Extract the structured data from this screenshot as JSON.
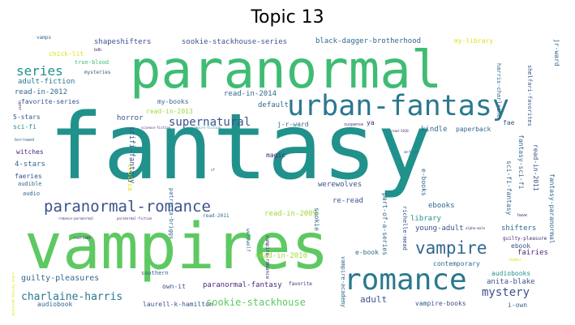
{
  "title": "Topic 13",
  "colors": {
    "teal_dark": "#2a788e",
    "teal": "#21918c",
    "green": "#5ec962",
    "green_mid": "#3fbc73",
    "blue": "#31688e",
    "navy": "#3b528b",
    "purple": "#482878",
    "dark": "#440154",
    "yellow": "#dde318",
    "lime": "#a0da39"
  },
  "words": [
    {
      "text": "fantasy"
    },
    {
      "text": "paranormal"
    },
    {
      "text": "vampires"
    },
    {
      "text": "urban-fantasy"
    },
    {
      "text": "romance"
    },
    {
      "text": "paranormal-romance"
    },
    {
      "text": "vampire"
    },
    {
      "text": "supernatural"
    },
    {
      "text": "series"
    },
    {
      "text": "mystery"
    },
    {
      "text": "charlaine-harris"
    },
    {
      "text": "sookie-stackhouse"
    },
    {
      "text": "guilty-pleasures"
    },
    {
      "text": "adult"
    },
    {
      "text": "shapeshifters"
    },
    {
      "text": "sookie-stackhouse-series"
    },
    {
      "text": "black-dagger-brotherhood"
    },
    {
      "text": "my-library"
    },
    {
      "text": "chick-lit"
    },
    {
      "text": "true-blood"
    },
    {
      "text": "mysteries"
    },
    {
      "text": "adult-fiction"
    },
    {
      "text": "read-in-2012"
    },
    {
      "text": "favorite-series"
    },
    {
      "text": "5-stars"
    },
    {
      "text": "sci-fi"
    },
    {
      "text": "4-stars"
    },
    {
      "text": "witches"
    },
    {
      "text": "faeries"
    },
    {
      "text": "audible"
    },
    {
      "text": "audio"
    },
    {
      "text": "read-in-2014"
    },
    {
      "text": "read-in-2013"
    },
    {
      "text": "my-books"
    },
    {
      "text": "default"
    },
    {
      "text": "horror"
    },
    {
      "text": "j-r-ward"
    },
    {
      "text": "kindle"
    },
    {
      "text": "paperback"
    },
    {
      "text": "fae"
    },
    {
      "text": "ya"
    },
    {
      "text": "magic"
    },
    {
      "text": "werewolves"
    },
    {
      "text": "scifi-fantasy"
    },
    {
      "text": "read-in-2009"
    },
    {
      "text": "re-read"
    },
    {
      "text": "ebooks"
    },
    {
      "text": "e-books"
    },
    {
      "text": "library"
    },
    {
      "text": "young-adult"
    },
    {
      "text": "shifters"
    },
    {
      "text": "fairies"
    },
    {
      "text": "ebook"
    },
    {
      "text": "e-book"
    },
    {
      "text": "audiobooks"
    },
    {
      "text": "anita-blake"
    },
    {
      "text": "contemporary"
    },
    {
      "text": "read-in-2010"
    },
    {
      "text": "paranormal-fantasy"
    },
    {
      "text": "favorite"
    },
    {
      "text": "own-it"
    },
    {
      "text": "laurell-k-hamilton"
    },
    {
      "text": "audiobook"
    },
    {
      "text": "southern"
    },
    {
      "text": "vampire-books"
    },
    {
      "text": "i-own"
    },
    {
      "text": "read-in-2011"
    },
    {
      "text": "fantasy-sci-fi"
    },
    {
      "text": "sci-fi-fantasy"
    },
    {
      "text": "fantasy-paranormal"
    },
    {
      "text": "guilty-pleasure"
    },
    {
      "text": "richelle-mead"
    },
    {
      "text": "vampire-academy"
    },
    {
      "text": "part-of-a-series"
    },
    {
      "text": "sookie"
    },
    {
      "text": "patricia-briggs"
    },
    {
      "text": "erotica"
    },
    {
      "text": "jr-ward"
    },
    {
      "text": "shelfari-favorites"
    },
    {
      "text": "harris-charlaine"
    },
    {
      "text": "vamps"
    },
    {
      "text": "bdb"
    },
    {
      "text": "romance-paranormal"
    },
    {
      "text": "paranormal-fiction"
    },
    {
      "text": "werewolf"
    },
    {
      "text": "vampire-romance"
    },
    {
      "text": "read-2011"
    },
    {
      "text": "science-fiction"
    },
    {
      "text": "vampire-fiction"
    },
    {
      "text": "suspense"
    },
    {
      "text": "read-2010"
    },
    {
      "text": "action"
    },
    {
      "text": "borrowed"
    },
    {
      "text": "humor"
    },
    {
      "text": "upnr"
    },
    {
      "text": "have"
    },
    {
      "text": "alpha-male"
    },
    {
      "text": "read-2009"
    },
    {
      "text": "sf"
    },
    {
      "text": "urban-fantasy-paranormal"
    }
  ]
}
